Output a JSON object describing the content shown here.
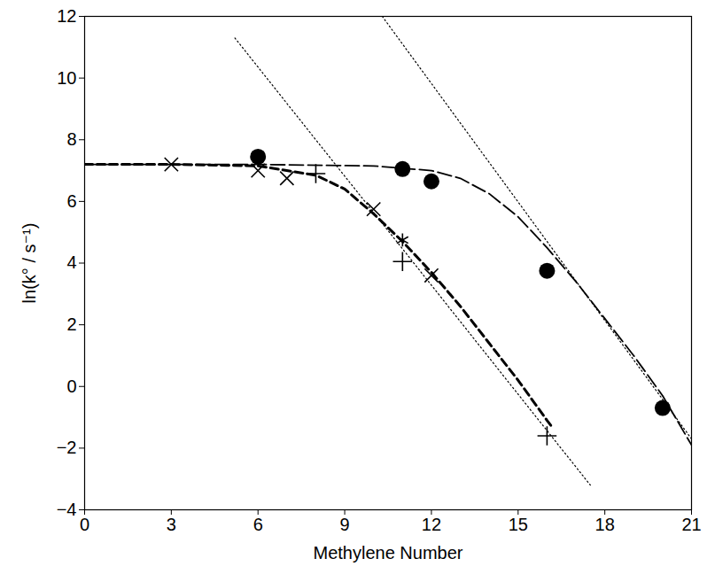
{
  "chart_data": {
    "type": "scatter",
    "x_label": "Methylene Number",
    "y_label": "ln(k° / s⁻¹)",
    "xlim": [
      0,
      21
    ],
    "xticks": [
      0,
      3,
      6,
      9,
      12,
      15,
      18,
      21
    ],
    "ylim": [
      -4,
      12
    ],
    "yticks": [
      -4,
      -2,
      0,
      2,
      4,
      6,
      8,
      10,
      12
    ],
    "grid": false,
    "series": [
      {
        "type": "line",
        "line_style": "dashed",
        "color": "#000000",
        "x": [
          0,
          3,
          6,
          8,
          9,
          10,
          11,
          12,
          13,
          14,
          15,
          16,
          16.2
        ],
        "values": [
          7.2,
          7.2,
          7.15,
          6.85,
          6.4,
          5.6,
          4.7,
          3.7,
          2.6,
          1.4,
          0.2,
          -1.1,
          -1.35
        ]
      },
      {
        "type": "line",
        "line_style": "longdash",
        "color": "#000000",
        "x": [
          0,
          6,
          10,
          12,
          13,
          14,
          15,
          16,
          17,
          18,
          19,
          20,
          21
        ],
        "values": [
          7.2,
          7.2,
          7.15,
          7.0,
          6.75,
          6.25,
          5.5,
          4.5,
          3.4,
          2.2,
          1.0,
          -0.3,
          -1.9
        ]
      },
      {
        "type": "line",
        "line_style": "dotted",
        "color": "#000000",
        "x": [
          5.2,
          17.5
        ],
        "values": [
          11.3,
          -3.2
        ]
      },
      {
        "type": "line",
        "line_style": "dotted",
        "color": "#000000",
        "x": [
          10.3,
          21
        ],
        "values": [
          12,
          -1.7
        ]
      },
      {
        "type": "scatter",
        "marker": "circle",
        "color": "#000000",
        "x": [
          6,
          11,
          12,
          16,
          20
        ],
        "values": [
          7.45,
          7.05,
          6.65,
          3.75,
          -0.7
        ]
      },
      {
        "type": "scatter",
        "marker": "x",
        "color": "#000000",
        "x": [
          3,
          6,
          7,
          10,
          12
        ],
        "values": [
          7.2,
          7.0,
          6.75,
          5.75,
          3.6
        ]
      },
      {
        "type": "scatter",
        "marker": "plus",
        "color": "#000000",
        "x": [
          8,
          11,
          16
        ],
        "values": [
          6.9,
          4.05,
          -1.6
        ]
      },
      {
        "type": "scatter",
        "marker": "asterisk",
        "color": "#000000",
        "x": [
          11
        ],
        "values": [
          4.75
        ]
      }
    ]
  }
}
